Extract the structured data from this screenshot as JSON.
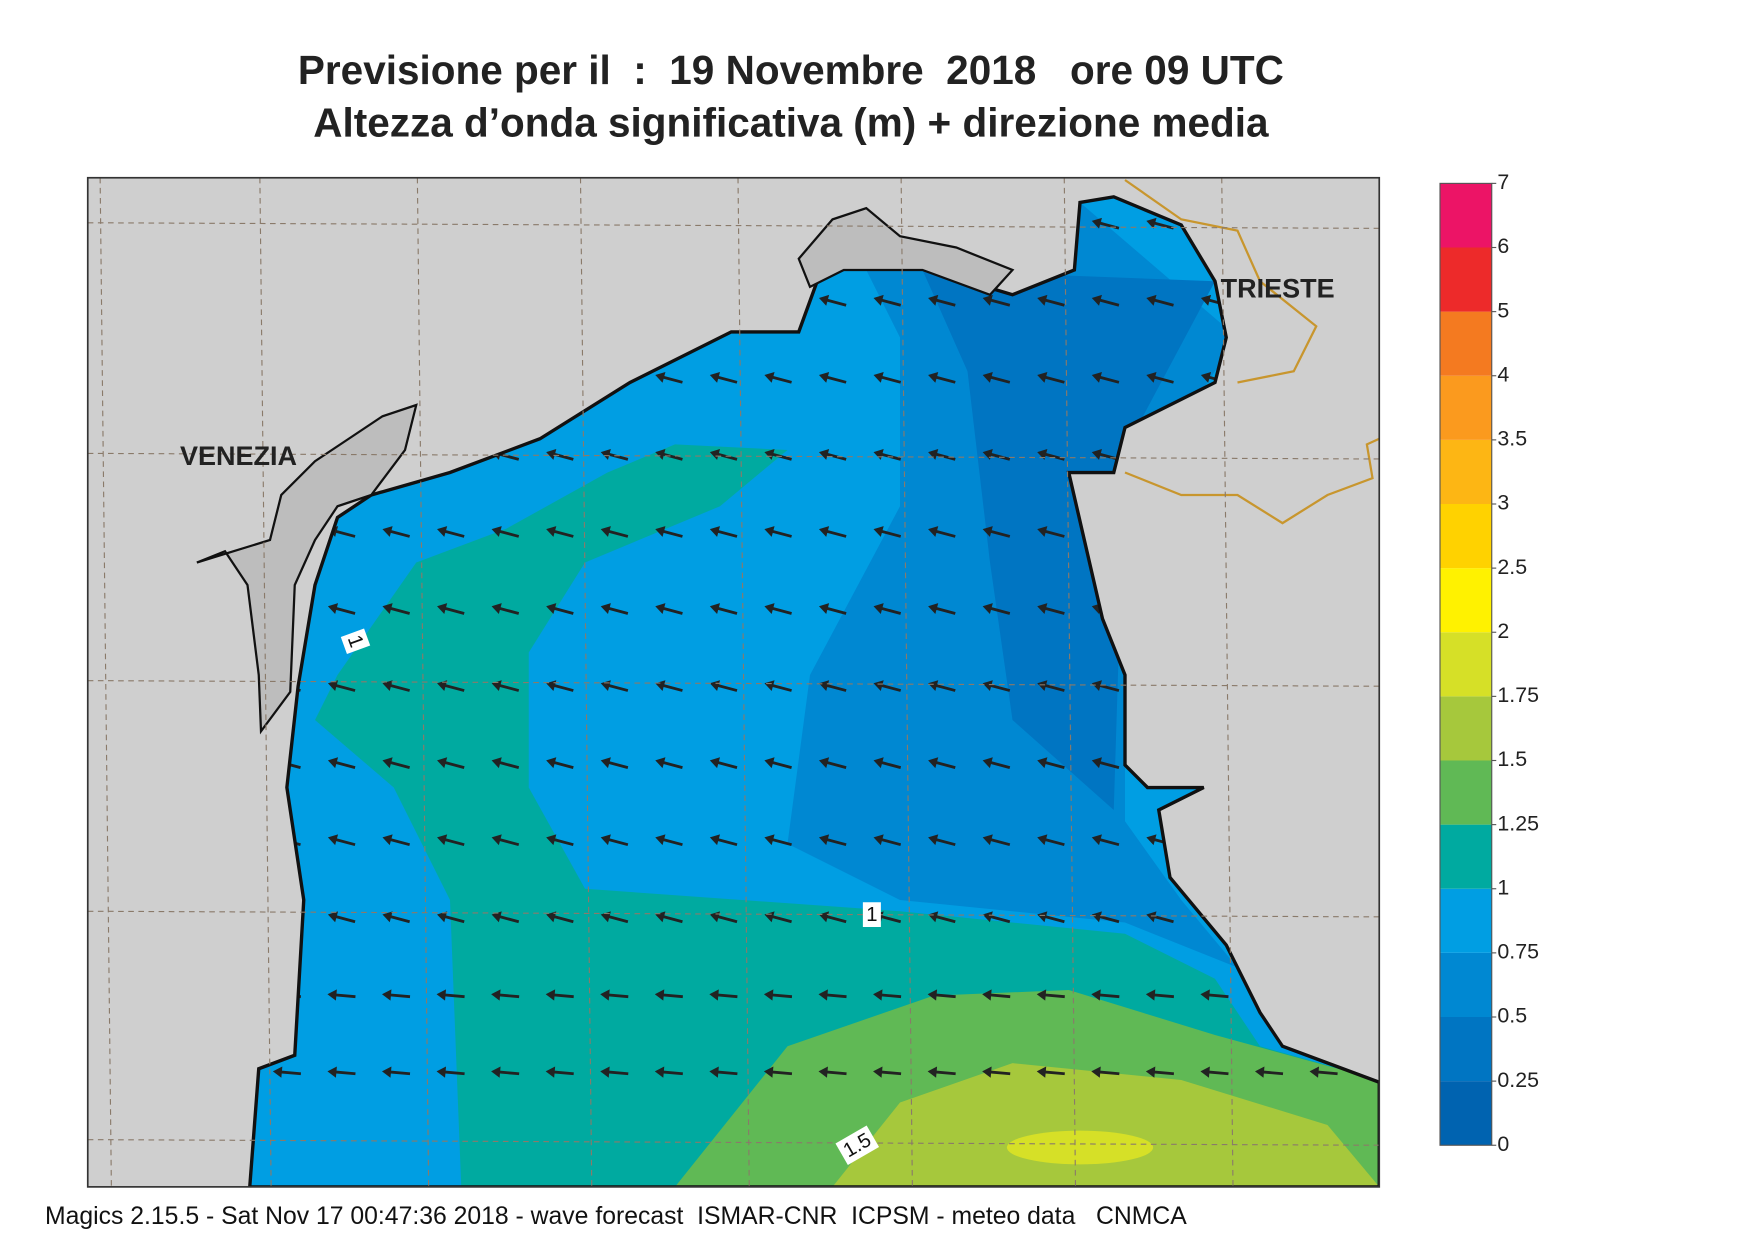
{
  "title": {
    "line1": "Previsione per il  :  19 Novembre  2018   ore 09 UTC",
    "line2": "Altezza d’onda significativa (m) + direzione media"
  },
  "map": {
    "places": [
      "VENEZIA",
      "TRIESTE"
    ],
    "contour_labels": [
      "1",
      "1",
      "1.5"
    ]
  },
  "legend": {
    "ticks": [
      0,
      0.25,
      0.5,
      0.75,
      1,
      1.25,
      1.5,
      1.75,
      2,
      2.5,
      3,
      3.5,
      4,
      5,
      6,
      7
    ],
    "colors": [
      "#0063b0",
      "#0075c2",
      "#0088d2",
      "#009ee3",
      "#00aaa0",
      "#60b955",
      "#a6c83c",
      "#d6e027",
      "#fff200",
      "#ffd200",
      "#fdb614",
      "#fb9a1e",
      "#f47a20",
      "#ed2a2a",
      "#ec1466"
    ]
  },
  "footer": "Magics 2.15.5 - Sat Nov 17 00:47:36 2018 - wave forecast  ISMAR-CNR  ICPSM - meteo data   CNMCA"
}
